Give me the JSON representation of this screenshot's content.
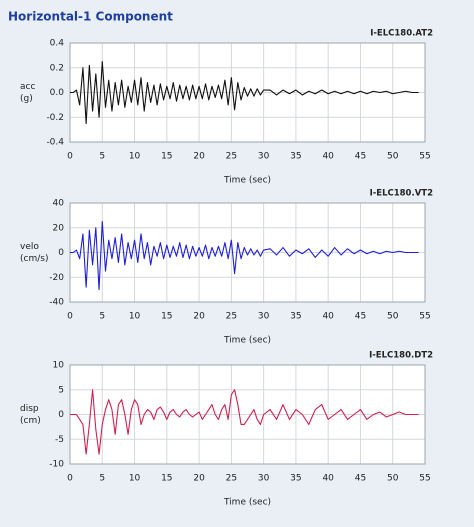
{
  "header": {
    "title": "Horizontal-1 Component"
  },
  "chart_data": [
    {
      "type": "line",
      "title": "I-ELC180.AT2",
      "xlabel": "Time (sec)",
      "ylabel": [
        "acc",
        "(g)"
      ],
      "xlim": [
        0,
        55
      ],
      "xticks": [
        0,
        5,
        10,
        15,
        20,
        25,
        30,
        35,
        40,
        45,
        50,
        55
      ],
      "ylim": [
        -0.4,
        0.4
      ],
      "yticks": [
        -0.4,
        -0.2,
        {
          "value": 0,
          "label": "0.0"
        },
        0.2,
        0.4
      ],
      "grid": true,
      "x": [
        0,
        0.5,
        1,
        1.5,
        2,
        2.5,
        3,
        3.5,
        4,
        4.5,
        5,
        5.5,
        6,
        6.5,
        7,
        7.5,
        8,
        8.5,
        9,
        9.5,
        10,
        10.5,
        11,
        11.5,
        12,
        12.5,
        13,
        13.5,
        14,
        14.5,
        15,
        15.5,
        16,
        16.5,
        17,
        17.5,
        18,
        18.5,
        19,
        19.5,
        20,
        20.5,
        21,
        21.5,
        22,
        22.5,
        23,
        23.5,
        24,
        24.5,
        25,
        25.5,
        26,
        26.5,
        27,
        27.5,
        28,
        28.5,
        29,
        29.5,
        30,
        31,
        32,
        33,
        34,
        35,
        36,
        37,
        38,
        39,
        40,
        41,
        42,
        43,
        44,
        45,
        46,
        47,
        48,
        49,
        50,
        51,
        52,
        53,
        54
      ],
      "series": [
        {
          "color": "#111111",
          "values": [
            0,
            0,
            0.02,
            -0.1,
            0.2,
            -0.25,
            0.22,
            -0.15,
            0.15,
            -0.2,
            0.25,
            -0.12,
            0.1,
            -0.15,
            0.08,
            -0.1,
            0.1,
            -0.12,
            0.05,
            -0.08,
            0.1,
            -0.1,
            0.12,
            -0.15,
            0.08,
            -0.08,
            0.06,
            -0.1,
            0.07,
            -0.06,
            0.05,
            -0.05,
            0.08,
            -0.07,
            0.06,
            -0.05,
            0.05,
            -0.06,
            0.06,
            -0.05,
            0.05,
            -0.05,
            0.07,
            -0.06,
            0.05,
            -0.04,
            0.06,
            -0.05,
            0.1,
            -0.1,
            0.12,
            -0.14,
            0.08,
            -0.06,
            0.04,
            -0.03,
            0.03,
            -0.03,
            0.03,
            -0.02,
            0.02,
            0.02,
            -0.02,
            0.02,
            -0.01,
            0.02,
            -0.02,
            0.01,
            -0.01,
            0.02,
            -0.01,
            0.01,
            -0.01,
            0.01,
            -0.01,
            0.01,
            -0.01,
            0.01,
            0,
            0.01,
            -0.01,
            0,
            0.01,
            0,
            0
          ]
        }
      ]
    },
    {
      "type": "line",
      "title": "I-ELC180.VT2",
      "xlabel": "Time (sec)",
      "ylabel": [
        "velo",
        "(cm/s)"
      ],
      "xlim": [
        0,
        55
      ],
      "xticks": [
        0,
        5,
        10,
        15,
        20,
        25,
        30,
        35,
        40,
        45,
        50,
        55
      ],
      "ylim": [
        -40,
        40
      ],
      "yticks": [
        -40,
        -20,
        0,
        20,
        40
      ],
      "grid": true,
      "x": [
        0,
        0.5,
        1,
        1.5,
        2,
        2.5,
        3,
        3.5,
        4,
        4.5,
        5,
        5.5,
        6,
        6.5,
        7,
        7.5,
        8,
        8.5,
        9,
        9.5,
        10,
        10.5,
        11,
        11.5,
        12,
        12.5,
        13,
        13.5,
        14,
        14.5,
        15,
        15.5,
        16,
        16.5,
        17,
        17.5,
        18,
        18.5,
        19,
        19.5,
        20,
        20.5,
        21,
        21.5,
        22,
        22.5,
        23,
        23.5,
        24,
        24.5,
        25,
        25.5,
        26,
        26.5,
        27,
        27.5,
        28,
        28.5,
        29,
        29.5,
        30,
        31,
        32,
        33,
        34,
        35,
        36,
        37,
        38,
        39,
        40,
        41,
        42,
        43,
        44,
        45,
        46,
        47,
        48,
        49,
        50,
        51,
        52,
        53,
        54
      ],
      "series": [
        {
          "color": "#1f1fd6",
          "values": [
            0,
            0,
            2,
            -5,
            15,
            -28,
            18,
            -10,
            20,
            -30,
            25,
            -15,
            10,
            -5,
            12,
            -8,
            15,
            -10,
            8,
            -5,
            10,
            -8,
            15,
            -5,
            8,
            -10,
            5,
            -3,
            8,
            -5,
            6,
            -4,
            5,
            -3,
            8,
            -4,
            6,
            -5,
            5,
            -3,
            4,
            -3,
            6,
            -5,
            4,
            -3,
            5,
            -3,
            8,
            -5,
            10,
            -17,
            8,
            -5,
            4,
            -2,
            3,
            -2,
            2,
            -3,
            2,
            3,
            -2,
            4,
            -3,
            2,
            -1,
            3,
            -4,
            2,
            -3,
            4,
            -2,
            3,
            -1,
            2,
            -1,
            1,
            -1,
            1,
            0,
            1,
            0,
            0,
            0
          ]
        }
      ]
    },
    {
      "type": "line",
      "title": "I-ELC180.DT2",
      "xlabel": "Time (sec)",
      "ylabel": [
        "disp",
        "(cm)"
      ],
      "xlim": [
        0,
        55
      ],
      "xticks": [
        0,
        5,
        10,
        15,
        20,
        25,
        30,
        35,
        40,
        45,
        50,
        55
      ],
      "ylim": [
        -10,
        10
      ],
      "yticks": [
        -10,
        -5,
        0,
        5,
        10
      ],
      "grid": true,
      "x": [
        0,
        0.5,
        1,
        1.5,
        2,
        2.5,
        3,
        3.5,
        4,
        4.5,
        5,
        5.5,
        6,
        6.5,
        7,
        7.5,
        8,
        8.5,
        9,
        9.5,
        10,
        10.5,
        11,
        11.5,
        12,
        12.5,
        13,
        13.5,
        14,
        14.5,
        15,
        15.5,
        16,
        16.5,
        17,
        17.5,
        18,
        18.5,
        19,
        19.5,
        20,
        20.5,
        21,
        21.5,
        22,
        22.5,
        23,
        23.5,
        24,
        24.5,
        25,
        25.5,
        26,
        26.5,
        27,
        27.5,
        28,
        28.5,
        29,
        29.5,
        30,
        31,
        32,
        33,
        34,
        35,
        36,
        37,
        38,
        39,
        40,
        41,
        42,
        43,
        44,
        45,
        46,
        47,
        48,
        49,
        50,
        51,
        52,
        53,
        54
      ],
      "series": [
        {
          "color": "#d0204f",
          "values": [
            0,
            0,
            0,
            -1,
            -2,
            -8,
            -2,
            5,
            -3,
            -8,
            -2,
            1,
            3,
            1,
            -4,
            2,
            3,
            0,
            -4,
            1,
            3,
            2,
            -2,
            0,
            1,
            0.5,
            -1,
            1,
            1.5,
            0.5,
            -1,
            0.5,
            1,
            0,
            -0.5,
            0.5,
            1,
            0,
            -0.5,
            0,
            0.5,
            -1,
            0,
            1,
            2,
            0,
            -1,
            1,
            2,
            -1,
            4,
            5,
            2,
            -2,
            -2,
            -1,
            0,
            1,
            -1,
            -2,
            0,
            1,
            -1,
            2,
            -1,
            1,
            0,
            -2,
            1,
            2,
            -1,
            0,
            1,
            -1,
            0,
            1,
            -1,
            0,
            0.5,
            -0.5,
            0,
            0.5,
            0,
            0,
            0
          ]
        }
      ]
    }
  ]
}
